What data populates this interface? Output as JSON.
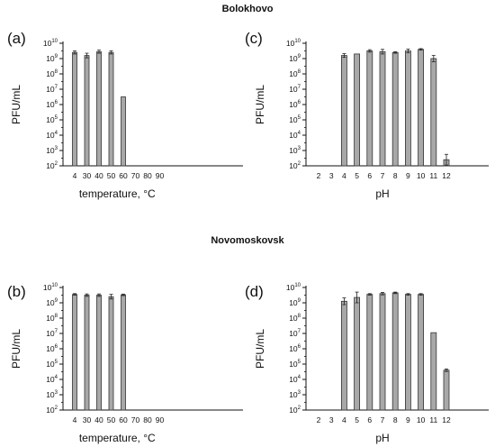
{
  "section_titles": [
    "Bolokhovo",
    "Novomoskovsk"
  ],
  "chart_data": [
    {
      "panel": "(a)",
      "type": "bar",
      "ylabel": "PFU/mL",
      "xlabel": "temperature, °C",
      "log_y": true,
      "ylim_exp": [
        2,
        10
      ],
      "categories": [
        "4",
        "30",
        "40",
        "50",
        "60",
        "70",
        "80",
        "90"
      ],
      "values_exp": [
        9.4,
        9.2,
        9.45,
        9.4,
        6.5,
        null,
        null,
        null
      ],
      "err_exp": [
        0.1,
        0.15,
        0.1,
        0.1,
        0.0,
        0,
        0,
        0
      ],
      "bar_color": "#a8a8a8"
    },
    {
      "panel": "(c)",
      "type": "bar",
      "ylabel": "PFU/mL",
      "xlabel": "pH",
      "log_y": true,
      "ylim_exp": [
        2,
        10
      ],
      "categories": [
        "2",
        "3",
        "4",
        "5",
        "6",
        "7",
        "8",
        "9",
        "10",
        "11",
        "12"
      ],
      "values_exp": [
        null,
        null,
        9.2,
        9.3,
        9.5,
        9.45,
        9.4,
        9.5,
        9.6,
        9.0,
        2.4
      ],
      "err_exp": [
        0,
        0,
        0.12,
        0.0,
        0.08,
        0.15,
        0.05,
        0.12,
        0.05,
        0.2,
        0.35
      ],
      "bar_color": "#a8a8a8"
    },
    {
      "panel": "(b)",
      "type": "bar",
      "ylabel": "PFU/mL",
      "xlabel": "temperature, °C",
      "log_y": true,
      "ylim_exp": [
        2,
        10
      ],
      "categories": [
        "4",
        "30",
        "40",
        "50",
        "60",
        "70",
        "80",
        "90"
      ],
      "values_exp": [
        9.55,
        9.5,
        9.5,
        9.4,
        9.52,
        null,
        null,
        null
      ],
      "err_exp": [
        0.05,
        0.08,
        0.08,
        0.15,
        0.05,
        0,
        0,
        0
      ],
      "bar_color": "#a8a8a8"
    },
    {
      "panel": "(d)",
      "type": "bar",
      "ylabel": "PFU/mL",
      "xlabel": "pH",
      "log_y": true,
      "ylim_exp": [
        2,
        10
      ],
      "categories": [
        "2",
        "3",
        "4",
        "5",
        "6",
        "7",
        "8",
        "9",
        "10",
        "11",
        "12"
      ],
      "values_exp": [
        null,
        null,
        9.1,
        9.35,
        9.55,
        9.6,
        9.65,
        9.55,
        9.55,
        7.05,
        4.6
      ],
      "err_exp": [
        0,
        0,
        0.22,
        0.35,
        0.05,
        0.08,
        0.05,
        0.05,
        0.05,
        0.0,
        0.08
      ],
      "bar_color": "#a8a8a8"
    }
  ]
}
